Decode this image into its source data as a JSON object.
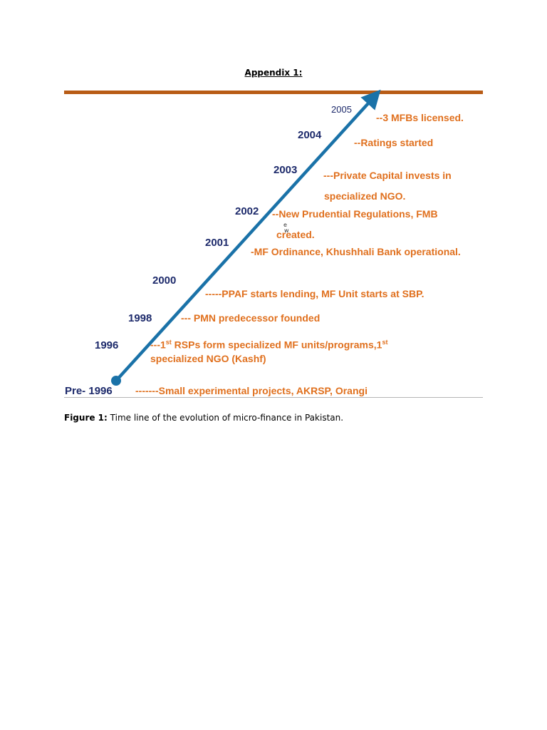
{
  "page": {
    "title": "Appendix 1:"
  },
  "timeline": {
    "years": {
      "y2005": "2005",
      "y2004": "2004",
      "y2003": "2003",
      "y2002": "2002",
      "y2001": "2001",
      "y2000": "2000",
      "y1998": "1998",
      "y1996": "1996",
      "pre1996": "Pre- 1996"
    },
    "events": {
      "e2005": "--3 MFBs licensed.",
      "e2004": "--Ratings started",
      "e2003_line1": "---Private Capital invests in",
      "e2003_line2": "specialized NGO.",
      "e2002_line1": "--New Prudential Regulations, FMB",
      "e2002_line2": "created.",
      "e2001": "-MF Ordinance, Khushhali Bank operational.",
      "e2000": "-----PPAF starts lending, MF Unit starts at SBP.",
      "e1998": "--- PMN predecessor  founded",
      "e1996_pre": "---1",
      "e1996_sup1": "st",
      "e1996_mid": " RSPs form specialized MF units/programs,1",
      "e1996_sup2": "st",
      "e1996_line2": "specialized NGO (Kashf)",
      "epre1996": "-------Small experimental projects, AKRSP, Orangi"
    },
    "stray_glyphs": {
      "g1": "e",
      "g2": "w"
    },
    "colors": {
      "year_text": "#1d2a6b",
      "event_text": "#e0701e",
      "arrow": "#1a72a8",
      "top_rule": "#b85c16"
    }
  },
  "caption": {
    "label": "Figure 1:",
    "text": " Time line of the evolution of micro-finance in Pakistan."
  }
}
